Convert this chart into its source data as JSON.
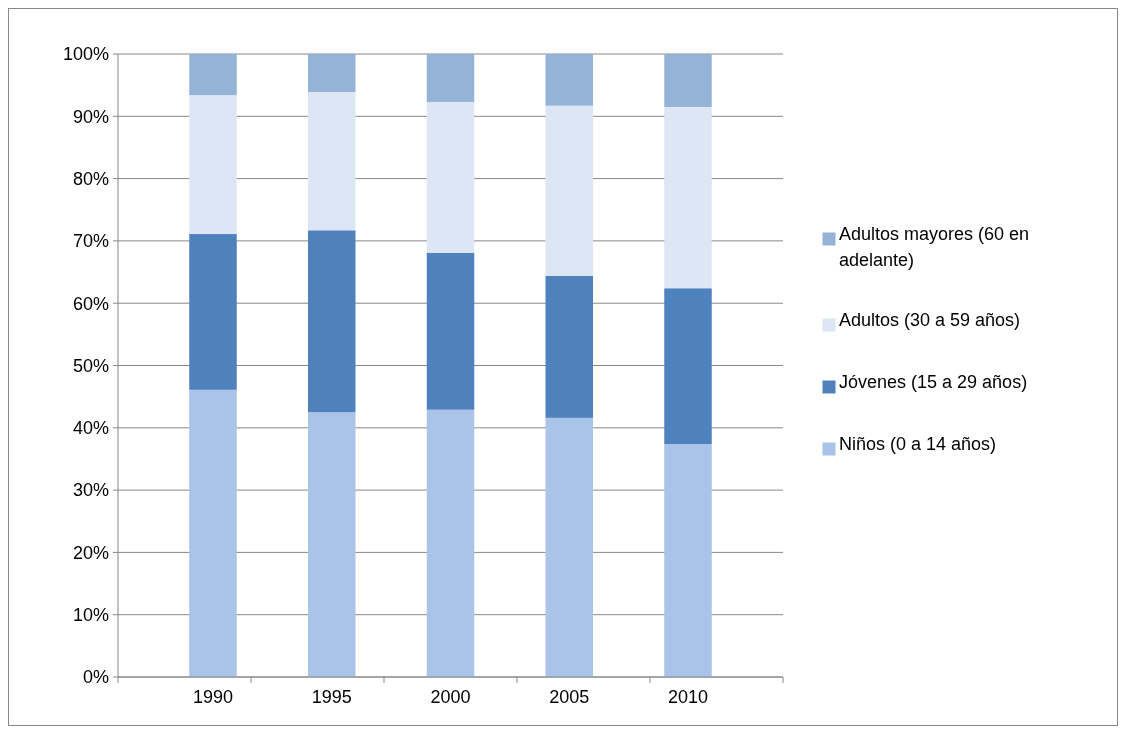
{
  "chart_data": {
    "type": "bar",
    "stacked": true,
    "categories": [
      "1990",
      "1995",
      "2000",
      "2005",
      "2010"
    ],
    "series": [
      {
        "name": "Niños (0 a 14 años)",
        "color": "#a9c4e8",
        "values": [
          46.1,
          42.5,
          42.9,
          41.6,
          37.4
        ]
      },
      {
        "name": "Jóvenes (15 a 29 años)",
        "color": "#4f81bd",
        "values": [
          25.0,
          29.2,
          25.2,
          22.8,
          25.0
        ]
      },
      {
        "name": "Adultos (30 a 59 años)",
        "color": "#dce6f4",
        "values": [
          22.3,
          22.2,
          24.2,
          27.3,
          29.1
        ]
      },
      {
        "name": "Adultos mayores (60 en adelante)",
        "color": "#95b3d7",
        "values": [
          6.6,
          6.1,
          7.7,
          8.3,
          8.5
        ]
      }
    ],
    "ylim": [
      0,
      100
    ],
    "yticks": [
      {
        "value": 0,
        "label": "0%"
      },
      {
        "value": 10,
        "label": "10%"
      },
      {
        "value": 20,
        "label": "20%"
      },
      {
        "value": 30,
        "label": "30%"
      },
      {
        "value": 40,
        "label": "40%"
      },
      {
        "value": 50,
        "label": "50%"
      },
      {
        "value": 60,
        "label": "60%"
      },
      {
        "value": 70,
        "label": "70%"
      },
      {
        "value": 80,
        "label": "80%"
      },
      {
        "value": 90,
        "label": "90%"
      },
      {
        "value": 100,
        "label": "100%"
      }
    ],
    "grid": "y",
    "legend": "right"
  }
}
